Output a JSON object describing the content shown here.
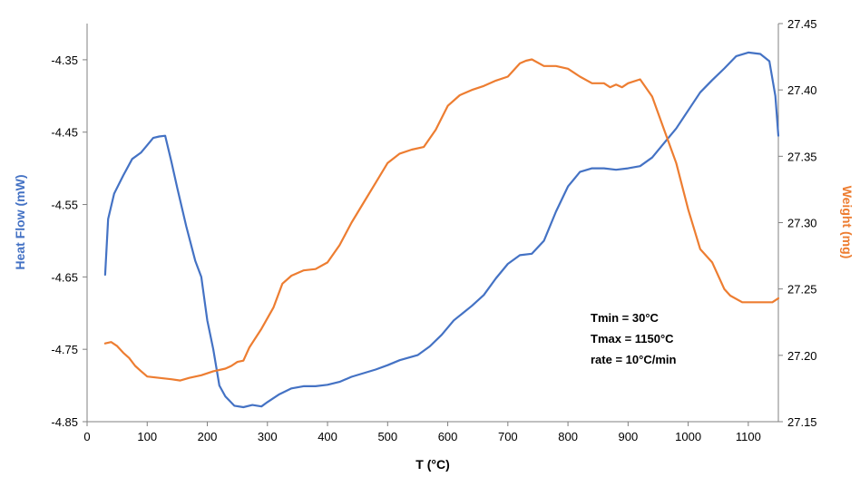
{
  "chart_data": {
    "type": "line",
    "title": "",
    "xlabel": "T (°C)",
    "ylabel_left": "Heat Flow (mW)",
    "ylabel_right": "Weight (mg)",
    "xlim": [
      0,
      1150
    ],
    "ylim_left": [
      -4.85,
      -4.3
    ],
    "ylim_right": [
      27.15,
      27.45
    ],
    "x_ticks": [
      "0",
      "100",
      "200",
      "300",
      "400",
      "500",
      "600",
      "700",
      "800",
      "900",
      "1000",
      "1100"
    ],
    "y_left_ticks": [
      "-4.35",
      "-4.45",
      "-4.55",
      "-4.65",
      "-4.75",
      "-4.85"
    ],
    "y_right_ticks": [
      "27.45",
      "27.40",
      "27.35",
      "27.30",
      "27.25",
      "27.20",
      "27.15"
    ],
    "grid": false,
    "legend": "none",
    "series": [
      {
        "axis": "left",
        "color": "#4472C4",
        "x": [
          30,
          35,
          45,
          60,
          75,
          90,
          100,
          110,
          120,
          130,
          140,
          150,
          165,
          180,
          190,
          200,
          210,
          220,
          230,
          245,
          260,
          275,
          290,
          300,
          320,
          340,
          360,
          380,
          400,
          420,
          440,
          460,
          480,
          500,
          520,
          550,
          570,
          590,
          610,
          640,
          660,
          680,
          700,
          720,
          740,
          760,
          780,
          800,
          820,
          840,
          860,
          880,
          900,
          920,
          940,
          960,
          980,
          1000,
          1020,
          1040,
          1060,
          1080,
          1100,
          1120,
          1135,
          1145,
          1150
        ],
        "y": [
          -4.647,
          -4.57,
          -4.535,
          -4.51,
          -4.487,
          -4.478,
          -4.468,
          -4.458,
          -4.456,
          -4.455,
          -4.49,
          -4.527,
          -4.58,
          -4.628,
          -4.65,
          -4.71,
          -4.75,
          -4.8,
          -4.815,
          -4.828,
          -4.83,
          -4.827,
          -4.829,
          -4.823,
          -4.812,
          -4.804,
          -4.801,
          -4.801,
          -4.799,
          -4.795,
          -4.788,
          -4.783,
          -4.778,
          -4.772,
          -4.765,
          -4.758,
          -4.746,
          -4.73,
          -4.71,
          -4.69,
          -4.675,
          -4.652,
          -4.632,
          -4.62,
          -4.618,
          -4.6,
          -4.56,
          -4.525,
          -4.505,
          -4.5,
          -4.5,
          -4.502,
          -4.5,
          -4.497,
          -4.485,
          -4.465,
          -4.445,
          -4.42,
          -4.395,
          -4.378,
          -4.362,
          -4.345,
          -4.34,
          -4.342,
          -4.352,
          -4.4,
          -4.455
        ]
      },
      {
        "axis": "right",
        "color": "#ED7D31",
        "x": [
          30,
          40,
          50,
          60,
          70,
          80,
          90,
          100,
          120,
          140,
          155,
          170,
          190,
          210,
          230,
          240,
          250,
          260,
          270,
          290,
          310,
          325,
          340,
          360,
          380,
          400,
          420,
          440,
          460,
          480,
          500,
          520,
          540,
          560,
          580,
          600,
          620,
          640,
          660,
          680,
          700,
          720,
          730,
          740,
          760,
          780,
          800,
          820,
          840,
          860,
          870,
          880,
          890,
          900,
          920,
          940,
          960,
          980,
          1000,
          1020,
          1040,
          1060,
          1070,
          1090,
          1110,
          1130,
          1140,
          1150
        ],
        "y": [
          27.209,
          27.21,
          27.207,
          27.202,
          27.198,
          27.192,
          27.188,
          27.184,
          27.183,
          27.182,
          27.181,
          27.183,
          27.185,
          27.188,
          27.19,
          27.192,
          27.195,
          27.196,
          27.206,
          27.22,
          27.236,
          27.254,
          27.26,
          27.264,
          27.265,
          27.27,
          27.283,
          27.3,
          27.315,
          27.33,
          27.345,
          27.352,
          27.355,
          27.357,
          27.37,
          27.388,
          27.396,
          27.4,
          27.403,
          27.407,
          27.41,
          27.42,
          27.422,
          27.423,
          27.418,
          27.418,
          27.416,
          27.41,
          27.405,
          27.405,
          27.402,
          27.404,
          27.402,
          27.405,
          27.408,
          27.395,
          27.37,
          27.345,
          27.31,
          27.28,
          27.27,
          27.25,
          27.245,
          27.24,
          27.24,
          27.24,
          27.24,
          27.243
        ]
      }
    ],
    "annotations": [
      "Tmin = 30°C",
      "Tmax = 1150°C",
      "rate = 10°C/min"
    ]
  }
}
